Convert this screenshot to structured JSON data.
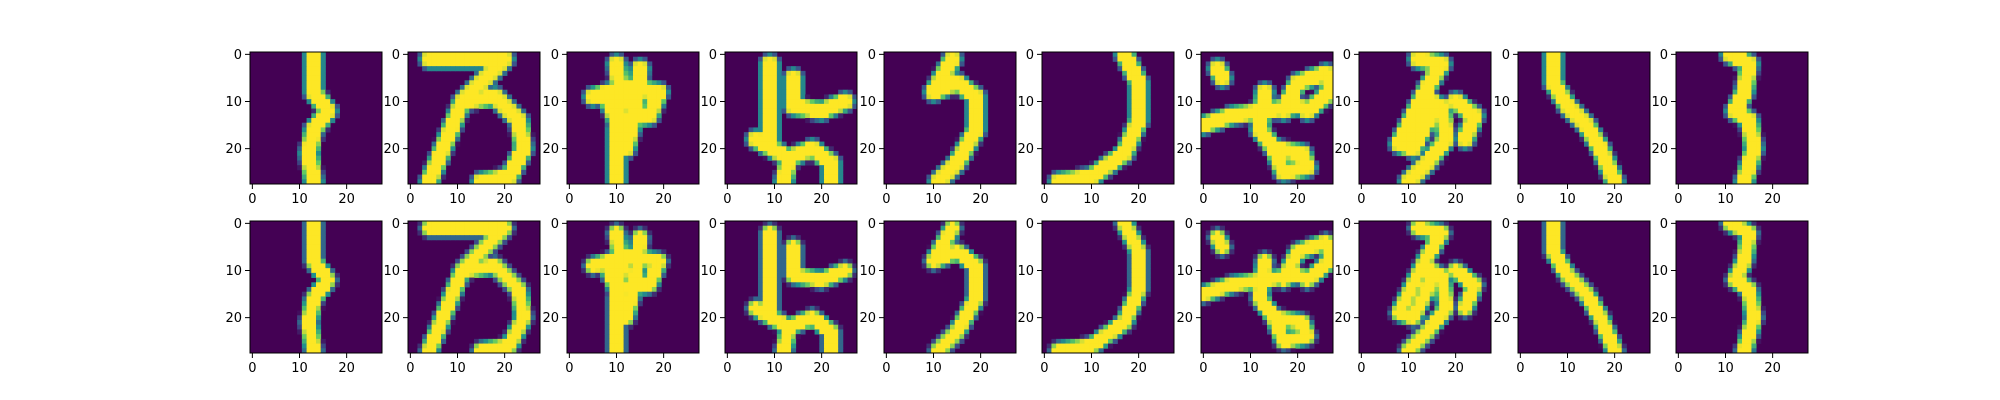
{
  "figure": {
    "rows": 2,
    "cols": 10,
    "panel_description": "Grid of 28x28 grayscale handwritten glyph images rendered with a viridis colormap; top row = original images, bottom row = reconstructions"
  },
  "chart_data": {
    "type": "heatmap",
    "colormap": "viridis",
    "colormap_colors": [
      "#440154",
      "#31688e",
      "#35b779",
      "#fde725"
    ],
    "image_size": [
      28,
      28
    ],
    "x_ticks": [
      0,
      10,
      20
    ],
    "y_ticks": [
      0,
      10,
      20
    ],
    "x_tick_labels": [
      "0",
      "10",
      "20"
    ],
    "y_tick_labels": [
      "0",
      "10",
      "20"
    ],
    "xlim": [
      -0.5,
      27.5
    ],
    "ylim": [
      27.5,
      -0.5
    ],
    "grid": false,
    "legend": "none",
    "panels": [
      {
        "row": 0,
        "col": 0,
        "strokes": [
          [
            [
              13,
              0
            ],
            [
              13,
              8
            ],
            [
              16,
              12
            ],
            [
              13,
              16
            ],
            [
              12,
              21
            ],
            [
              13,
              27
            ]
          ]
        ]
      },
      {
        "row": 0,
        "col": 1,
        "strokes": [
          [
            [
              4,
              1
            ],
            [
              20,
              1
            ],
            [
              11,
              10
            ],
            [
              4,
              27
            ]
          ],
          [
            [
              11,
              10
            ],
            [
              18,
              9
            ],
            [
              23,
              14
            ],
            [
              24,
              20
            ],
            [
              21,
              26
            ],
            [
              15,
              27
            ]
          ]
        ]
      },
      {
        "row": 0,
        "col": 2,
        "strokes": [
          [
            [
              10,
              2
            ],
            [
              11,
              9
            ],
            [
              10,
              16
            ],
            [
              10,
              27
            ]
          ],
          [
            [
              5,
              9
            ],
            [
              12,
              7
            ],
            [
              19,
              8
            ],
            [
              17,
              13
            ],
            [
              10,
              14
            ],
            [
              8,
              9
            ]
          ],
          [
            [
              15,
              3
            ],
            [
              14,
              12
            ],
            [
              12,
              20
            ]
          ]
        ]
      },
      {
        "row": 0,
        "col": 3,
        "strokes": [
          [
            [
              9,
              2
            ],
            [
              9,
              10
            ],
            [
              9,
              18
            ]
          ],
          [
            [
              14,
              5
            ],
            [
              14,
              11
            ],
            [
              20,
              12
            ],
            [
              25,
              10
            ]
          ],
          [
            [
              6,
              18
            ],
            [
              13,
              22
            ],
            [
              12,
              27
            ]
          ],
          [
            [
              13,
              22
            ],
            [
              18,
              20
            ],
            [
              22,
              23
            ],
            [
              22,
              27
            ]
          ]
        ]
      },
      {
        "row": 0,
        "col": 4,
        "strokes": [
          [
            [
              14,
              1
            ],
            [
              10,
              8
            ]
          ],
          [
            [
              10,
              8
            ],
            [
              15,
              6
            ],
            [
              19,
              9
            ],
            [
              19,
              16
            ],
            [
              15,
              23
            ],
            [
              11,
              27
            ]
          ]
        ]
      },
      {
        "row": 0,
        "col": 5,
        "strokes": [
          [
            [
              17,
              0
            ],
            [
              20,
              6
            ],
            [
              20,
              14
            ],
            [
              17,
              21
            ],
            [
              10,
              26
            ],
            [
              3,
              27
            ]
          ]
        ]
      },
      {
        "row": 0,
        "col": 6,
        "strokes": [
          [
            [
              3,
              3
            ],
            [
              4,
              5
            ]
          ],
          [
            [
              0,
              15
            ],
            [
              6,
              13
            ],
            [
              13,
              12
            ],
            [
              20,
              11
            ]
          ],
          [
            [
              13,
              8
            ],
            [
              12,
              16
            ],
            [
              15,
              20
            ],
            [
              21,
              21
            ],
            [
              22,
              24
            ],
            [
              17,
              25
            ],
            [
              15,
              20
            ]
          ],
          [
            [
              17,
              12
            ],
            [
              20,
              6
            ],
            [
              26,
              4
            ],
            [
              27,
              8
            ],
            [
              22,
              12
            ]
          ]
        ]
      },
      {
        "row": 0,
        "col": 7,
        "strokes": [
          [
            [
              12,
              1
            ],
            [
              17,
              2
            ],
            [
              14,
              7
            ]
          ],
          [
            [
              14,
              7
            ],
            [
              10,
              15
            ],
            [
              8,
              19
            ],
            [
              11,
              20
            ],
            [
              14,
              14
            ],
            [
              15,
              10
            ]
          ],
          [
            [
              17,
              11
            ],
            [
              18,
              18
            ],
            [
              14,
              23
            ],
            [
              10,
              27
            ]
          ],
          [
            [
              20,
              10
            ],
            [
              24,
              13
            ],
            [
              22,
              18
            ]
          ]
        ]
      },
      {
        "row": 0,
        "col": 8,
        "strokes": [
          [
            [
              7,
              0
            ],
            [
              7,
              6
            ],
            [
              10,
              11
            ],
            [
              14,
              15
            ],
            [
              17,
              20
            ],
            [
              20,
              27
            ]
          ]
        ]
      },
      {
        "row": 0,
        "col": 9,
        "strokes": [
          [
            [
              11,
              0
            ],
            [
              15,
              2
            ],
            [
              14,
              8
            ],
            [
              12,
              12
            ],
            [
              15,
              14
            ],
            [
              16,
              20
            ],
            [
              14,
              27
            ]
          ]
        ]
      },
      {
        "row": 1,
        "col": 0,
        "strokes": [
          [
            [
              13,
              0
            ],
            [
              13,
              8
            ],
            [
              16,
              12
            ],
            [
              13,
              16
            ],
            [
              12,
              21
            ],
            [
              13,
              27
            ]
          ]
        ]
      },
      {
        "row": 1,
        "col": 1,
        "strokes": [
          [
            [
              4,
              1
            ],
            [
              20,
              1
            ],
            [
              11,
              10
            ],
            [
              4,
              27
            ]
          ],
          [
            [
              11,
              10
            ],
            [
              18,
              9
            ],
            [
              23,
              14
            ],
            [
              24,
              20
            ],
            [
              21,
              26
            ],
            [
              15,
              27
            ]
          ]
        ]
      },
      {
        "row": 1,
        "col": 2,
        "strokes": [
          [
            [
              10,
              2
            ],
            [
              11,
              9
            ],
            [
              10,
              16
            ],
            [
              10,
              27
            ]
          ],
          [
            [
              5,
              9
            ],
            [
              12,
              7
            ],
            [
              19,
              8
            ],
            [
              17,
              13
            ],
            [
              10,
              14
            ],
            [
              8,
              9
            ]
          ],
          [
            [
              15,
              3
            ],
            [
              14,
              12
            ],
            [
              12,
              20
            ]
          ]
        ]
      },
      {
        "row": 1,
        "col": 3,
        "strokes": [
          [
            [
              9,
              2
            ],
            [
              9,
              10
            ],
            [
              9,
              18
            ]
          ],
          [
            [
              14,
              5
            ],
            [
              14,
              11
            ],
            [
              20,
              12
            ],
            [
              25,
              10
            ]
          ],
          [
            [
              6,
              18
            ],
            [
              13,
              22
            ],
            [
              12,
              27
            ]
          ],
          [
            [
              13,
              22
            ],
            [
              18,
              20
            ],
            [
              22,
              23
            ],
            [
              22,
              27
            ]
          ]
        ]
      },
      {
        "row": 1,
        "col": 4,
        "strokes": [
          [
            [
              14,
              1
            ],
            [
              10,
              8
            ]
          ],
          [
            [
              10,
              8
            ],
            [
              15,
              6
            ],
            [
              19,
              9
            ],
            [
              19,
              16
            ],
            [
              15,
              23
            ],
            [
              11,
              27
            ]
          ]
        ]
      },
      {
        "row": 1,
        "col": 5,
        "strokes": [
          [
            [
              17,
              0
            ],
            [
              20,
              6
            ],
            [
              20,
              14
            ],
            [
              17,
              21
            ],
            [
              10,
              26
            ],
            [
              3,
              27
            ]
          ]
        ]
      },
      {
        "row": 1,
        "col": 6,
        "strokes": [
          [
            [
              3,
              3
            ],
            [
              4,
              5
            ]
          ],
          [
            [
              0,
              15
            ],
            [
              6,
              13
            ],
            [
              13,
              12
            ],
            [
              20,
              11
            ]
          ],
          [
            [
              13,
              8
            ],
            [
              12,
              16
            ],
            [
              15,
              20
            ],
            [
              21,
              21
            ],
            [
              22,
              24
            ],
            [
              17,
              25
            ],
            [
              15,
              20
            ]
          ],
          [
            [
              17,
              12
            ],
            [
              20,
              6
            ],
            [
              26,
              4
            ],
            [
              27,
              8
            ],
            [
              22,
              12
            ]
          ]
        ]
      },
      {
        "row": 1,
        "col": 7,
        "strokes": [
          [
            [
              12,
              1
            ],
            [
              17,
              2
            ],
            [
              14,
              7
            ]
          ],
          [
            [
              14,
              7
            ],
            [
              10,
              15
            ],
            [
              8,
              19
            ],
            [
              11,
              20
            ],
            [
              14,
              14
            ],
            [
              15,
              10
            ]
          ],
          [
            [
              17,
              11
            ],
            [
              18,
              18
            ],
            [
              14,
              23
            ],
            [
              10,
              27
            ]
          ],
          [
            [
              20,
              10
            ],
            [
              24,
              13
            ],
            [
              22,
              18
            ]
          ]
        ]
      },
      {
        "row": 1,
        "col": 8,
        "strokes": [
          [
            [
              7,
              0
            ],
            [
              7,
              6
            ],
            [
              10,
              11
            ],
            [
              14,
              15
            ],
            [
              17,
              20
            ],
            [
              20,
              27
            ]
          ]
        ]
      },
      {
        "row": 1,
        "col": 9,
        "strokes": [
          [
            [
              11,
              0
            ],
            [
              15,
              2
            ],
            [
              14,
              8
            ],
            [
              12,
              12
            ],
            [
              15,
              14
            ],
            [
              16,
              20
            ],
            [
              14,
              27
            ]
          ]
        ]
      }
    ]
  }
}
